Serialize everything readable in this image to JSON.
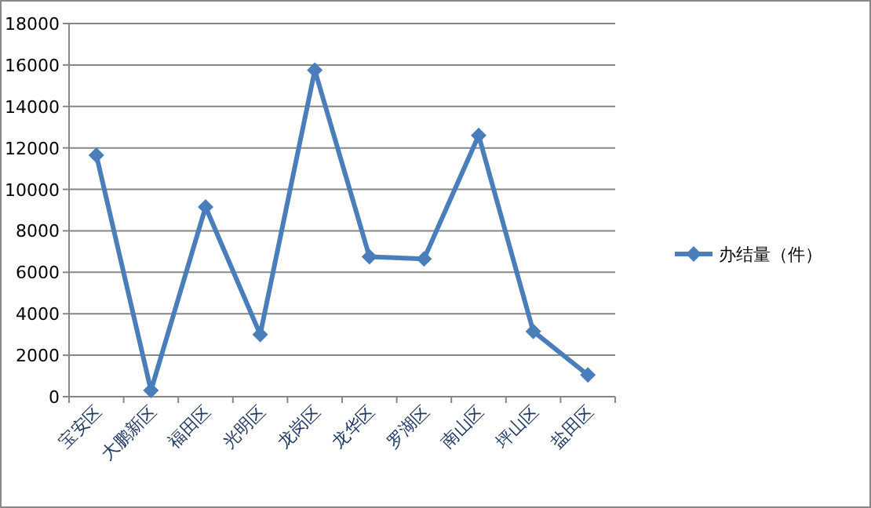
{
  "chart_data": {
    "type": "line",
    "categories": [
      "宝安区",
      "大鹏新区",
      "福田区",
      "光明区",
      "龙岗区",
      "龙华区",
      "罗湖区",
      "南山区",
      "坪山区",
      "盐田区"
    ],
    "series": [
      {
        "name": "办结量（件）",
        "color": "#4a7ebb",
        "values": [
          11650,
          300,
          9150,
          3000,
          15750,
          6750,
          6650,
          12600,
          3150,
          1050
        ]
      }
    ],
    "ylim": [
      0,
      18000
    ],
    "yticks": [
      0,
      2000,
      4000,
      6000,
      8000,
      10000,
      12000,
      14000,
      16000,
      18000
    ],
    "grid": "y",
    "legend": "right",
    "marker": "diamond",
    "line_style": "solid"
  }
}
